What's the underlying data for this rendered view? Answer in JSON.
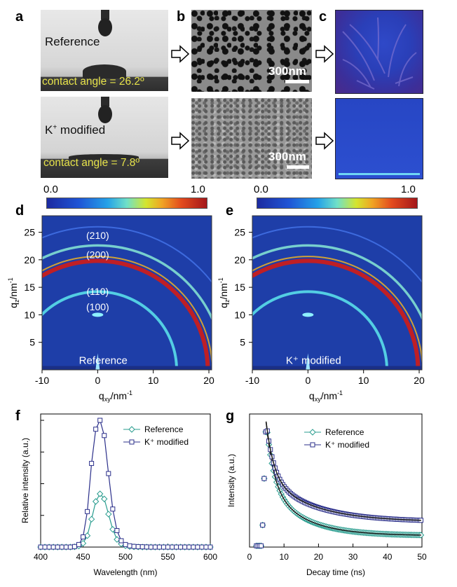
{
  "panel_labels": {
    "a": "a",
    "b": "b",
    "c": "c",
    "d": "d",
    "e": "e",
    "f": "f",
    "g": "g"
  },
  "panel_a": {
    "top_label": "Reference",
    "top_angle": "contact angle = 26.2º",
    "bottom_label_prefix": "K",
    "bottom_label_sup": "+",
    "bottom_label_suffix": " modified",
    "bottom_angle": "contact angle = 7.8º"
  },
  "panel_b": {
    "scale_top": "300nm",
    "scale_bottom": "300nm"
  },
  "colorbar": {
    "min": "0.0",
    "max": "1.0"
  },
  "panel_d": {
    "peaks": [
      "(210)",
      "(200)",
      "(110)",
      "(100)"
    ],
    "sample": "Reference"
  },
  "panel_e": {
    "sample": "K⁺ modified"
  },
  "giwaxs_axes": {
    "ylabel_main": "q",
    "ylabel_sub": "z",
    "ylabel_unit": "/nm",
    "ylabel_exp": "-1",
    "xlabel_main": "q",
    "xlabel_sub": "xy",
    "xlabel_unit": "/nm",
    "xlabel_exp": "-1",
    "xticks": [
      "-10",
      "0",
      "10",
      "20"
    ],
    "yticks": [
      "25",
      "20",
      "15",
      "10",
      "5"
    ]
  },
  "colors": {
    "reference": "#2a9d8f",
    "k_modified": "#2b2f8a",
    "giwaxs_bg": "#1e3ea8"
  },
  "chart_data": [
    {
      "type": "line",
      "panel": "f",
      "xlabel": "Wavelength (nm)",
      "ylabel": "Relative intensity (a.u.)",
      "xlim": [
        400,
        600
      ],
      "ylim": [
        0,
        1.05
      ],
      "xticks": [
        "400",
        "450",
        "500",
        "550",
        "600"
      ],
      "x": [
        400,
        405,
        410,
        415,
        420,
        425,
        430,
        435,
        440,
        445,
        450,
        455,
        460,
        465,
        470,
        475,
        480,
        485,
        490,
        495,
        500,
        505,
        510,
        515,
        520,
        525,
        530,
        535,
        540,
        545,
        550,
        555,
        560,
        565,
        570,
        575,
        580,
        585,
        590,
        595,
        600
      ],
      "series": [
        {
          "name": "Reference",
          "marker": "diamond",
          "values": [
            0,
            0,
            0,
            0,
            0,
            0,
            0,
            0,
            0.002,
            0.008,
            0.03,
            0.09,
            0.22,
            0.36,
            0.42,
            0.38,
            0.26,
            0.14,
            0.06,
            0.025,
            0.01,
            0.004,
            0.002,
            0.001,
            0,
            0,
            0,
            0,
            0,
            0,
            0,
            0,
            0,
            0,
            0,
            0,
            0,
            0,
            0,
            0,
            0
          ]
        },
        {
          "name": "K⁺ modified",
          "marker": "square",
          "values": [
            0,
            0,
            0,
            0,
            0,
            0,
            0,
            0,
            0.004,
            0.02,
            0.08,
            0.28,
            0.66,
            0.93,
            1.0,
            0.88,
            0.58,
            0.3,
            0.13,
            0.05,
            0.02,
            0.01,
            0.005,
            0.003,
            0.002,
            0.001,
            0,
            0,
            0,
            0,
            0,
            0,
            0,
            0,
            0,
            0,
            0,
            0,
            0,
            0,
            0
          ]
        }
      ]
    },
    {
      "type": "scatter",
      "panel": "g",
      "xlabel": "Decay time (ns)",
      "ylabel": "Intensity (a.u.)",
      "xlim": [
        0,
        50
      ],
      "ylim": [
        0,
        1.05
      ],
      "xticks": [
        "0",
        "10",
        "20",
        "30",
        "40",
        "50"
      ],
      "peak_time": 4.8,
      "series": [
        {
          "name": "Reference",
          "marker": "diamond",
          "tail_end": 0.09
        },
        {
          "name": "K⁺ modified",
          "marker": "square",
          "tail_end": 0.2
        }
      ]
    }
  ]
}
